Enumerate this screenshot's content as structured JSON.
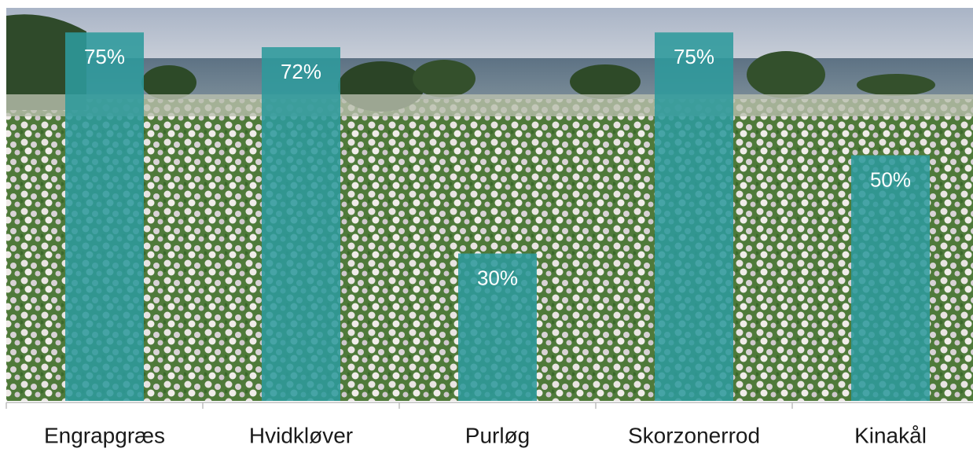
{
  "chart_data": {
    "type": "bar",
    "categories": [
      "Engrapgræs",
      "Hvidkløver",
      "Purløg",
      "Skorzonerrod",
      "Kinakål"
    ],
    "values": [
      75,
      72,
      30,
      75,
      50
    ],
    "value_labels": [
      "75%",
      "72%",
      "30%",
      "75%",
      "50%"
    ],
    "color": "#2e9a9c",
    "ylim": [
      0,
      80
    ]
  }
}
